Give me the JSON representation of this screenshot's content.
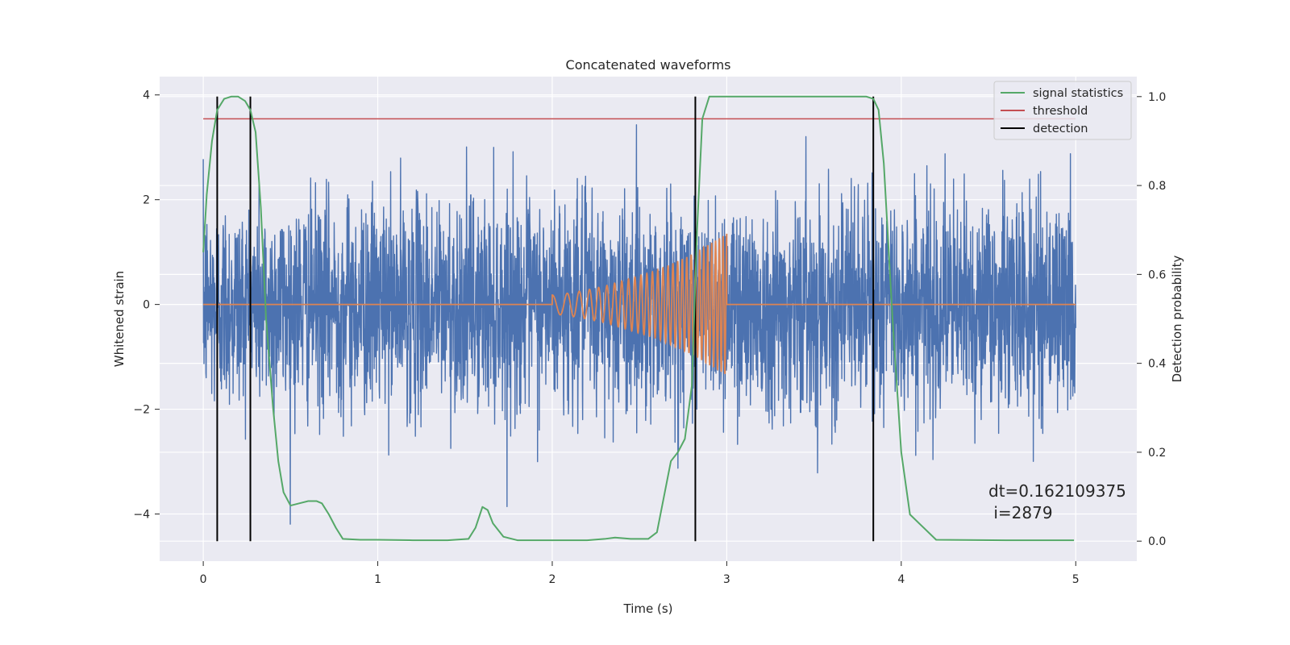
{
  "chart_data": {
    "type": "line",
    "title": "Concatenated waveforms",
    "xlabel": "Time (s)",
    "ylabel": "Whitened strain",
    "ylabel_right": "Detection probability",
    "xlim": [
      -0.25,
      5.35
    ],
    "ylim": [
      -4.9,
      4.35
    ],
    "ylim_right": [
      -0.045,
      1.045
    ],
    "x_ticks": [
      0,
      1,
      2,
      3,
      4,
      5
    ],
    "y_ticks": [
      -4,
      -2,
      0,
      2,
      4
    ],
    "y_ticks_right": [
      0.0,
      0.2,
      0.4,
      0.6,
      0.8,
      1.0
    ],
    "x_tick_labels": [
      "0",
      "1",
      "2",
      "3",
      "4",
      "5"
    ],
    "y_tick_labels": [
      "−4",
      "−2",
      "0",
      "2",
      "4"
    ],
    "y_tick_labels_right": [
      "0.0",
      "0.2",
      "0.4",
      "0.6",
      "0.8",
      "1.0"
    ],
    "grid": true,
    "legend_position": "top-right",
    "legend": [
      {
        "name": "signal statistics",
        "color": "#55a868"
      },
      {
        "name": "threshold",
        "color": "#c44e52"
      },
      {
        "name": "detection",
        "color": "#000000"
      }
    ],
    "annotation": {
      "line1": "dt=0.162109375",
      "line2": " i=2879"
    },
    "colors": {
      "noise": "#4c72b0",
      "waveform": "#dd8452",
      "statistics": "#55a868",
      "threshold": "#c44e52",
      "detection": "#000000",
      "plot_background": "#eaeaf2",
      "grid": "#ffffff"
    },
    "series": [
      {
        "role": "noise",
        "axis": "left",
        "x_range": [
          0,
          5
        ],
        "approx_std": 1.0,
        "approx_extremes": [
          -4.5,
          3.95
        ]
      },
      {
        "role": "waveform",
        "axis": "left",
        "x": [
          2.0,
          2.1,
          2.2,
          2.3,
          2.4,
          2.5,
          2.6,
          2.7,
          2.8,
          2.9,
          3.0
        ],
        "amplitude": [
          0.18,
          0.22,
          0.28,
          0.35,
          0.45,
          0.55,
          0.65,
          0.8,
          0.95,
          1.15,
          1.35
        ]
      },
      {
        "name": "signal statistics",
        "axis": "right",
        "x": [
          0.0,
          0.02,
          0.05,
          0.08,
          0.12,
          0.16,
          0.2,
          0.24,
          0.27,
          0.3,
          0.33,
          0.36,
          0.4,
          0.43,
          0.46,
          0.5,
          0.55,
          0.6,
          0.65,
          0.68,
          0.72,
          0.76,
          0.8,
          0.9,
          1.0,
          1.2,
          1.4,
          1.52,
          1.56,
          1.6,
          1.63,
          1.66,
          1.72,
          1.8,
          2.0,
          2.2,
          2.3,
          2.36,
          2.45,
          2.55,
          2.6,
          2.64,
          2.68,
          2.72,
          2.76,
          2.8,
          2.83,
          2.86,
          2.9,
          3.2,
          3.6,
          3.8,
          3.84,
          3.87,
          3.9,
          3.95,
          4.0,
          4.05,
          4.2,
          4.6,
          4.99
        ],
        "y": [
          0.65,
          0.78,
          0.9,
          0.97,
          0.995,
          1.0,
          1.0,
          0.99,
          0.97,
          0.92,
          0.75,
          0.5,
          0.3,
          0.18,
          0.11,
          0.08,
          0.085,
          0.09,
          0.09,
          0.085,
          0.06,
          0.03,
          0.005,
          0.003,
          0.003,
          0.002,
          0.002,
          0.005,
          0.03,
          0.077,
          0.07,
          0.04,
          0.01,
          0.002,
          0.002,
          0.002,
          0.005,
          0.008,
          0.005,
          0.005,
          0.02,
          0.1,
          0.18,
          0.2,
          0.23,
          0.35,
          0.7,
          0.95,
          1.0,
          1.0,
          1.0,
          1.0,
          0.995,
          0.97,
          0.85,
          0.5,
          0.2,
          0.06,
          0.003,
          0.002,
          0.002
        ]
      },
      {
        "name": "threshold",
        "axis": "right",
        "x": [
          0,
          5
        ],
        "y": [
          0.95,
          0.95
        ]
      }
    ],
    "detections": [
      0.08,
      0.27,
      2.82,
      3.84
    ]
  }
}
